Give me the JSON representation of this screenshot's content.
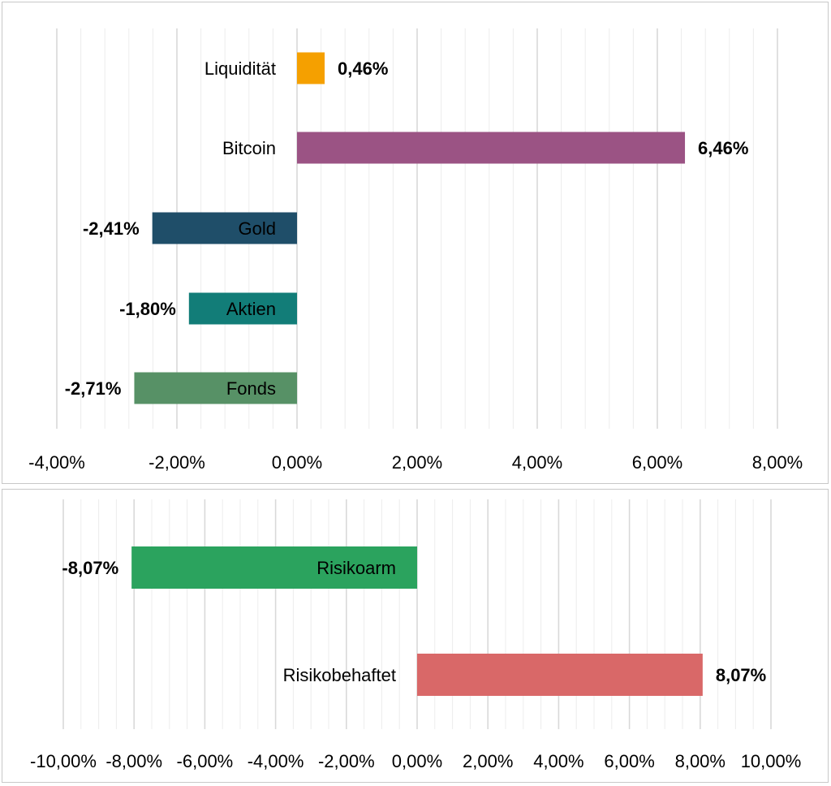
{
  "chart_data": [
    {
      "type": "bar",
      "orientation": "horizontal",
      "categories": [
        "Liquidität",
        "Bitcoin",
        "Gold",
        "Aktien",
        "Fonds"
      ],
      "values": [
        0.46,
        6.46,
        -2.41,
        -1.8,
        -2.71
      ],
      "value_labels": [
        "0,46%",
        "6,46%",
        "-2,41%",
        "-1,80%",
        "-2,71%"
      ],
      "colors": [
        "#F5A000",
        "#9B5384",
        "#1F4E69",
        "#127D78",
        "#579166"
      ],
      "xlim": [
        -4,
        8
      ],
      "xticks": [
        -4,
        -2,
        0,
        2,
        4,
        6,
        8
      ],
      "xtick_labels": [
        "-4,00%",
        "-2,00%",
        "0,00%",
        "2,00%",
        "4,00%",
        "6,00%",
        "8,00%"
      ],
      "minor_step": 0.4,
      "grid": true,
      "legend": "none",
      "title": "",
      "xlabel": "",
      "ylabel": ""
    },
    {
      "type": "bar",
      "orientation": "horizontal",
      "categories": [
        "Risikoarm",
        "Risikobehaftet"
      ],
      "values": [
        -8.07,
        8.07
      ],
      "value_labels": [
        "-8,07%",
        "8,07%"
      ],
      "colors": [
        "#2BA35E",
        "#D96868"
      ],
      "xlim": [
        -10,
        10
      ],
      "xticks": [
        -10,
        -8,
        -6,
        -4,
        -2,
        0,
        2,
        4,
        6,
        8,
        10
      ],
      "xtick_labels": [
        "-10,00%",
        "-8,00%",
        "-6,00%",
        "-4,00%",
        "-2,00%",
        "0,00%",
        "2,00%",
        "4,00%",
        "6,00%",
        "8,00%",
        "10,00%"
      ],
      "minor_step": 0.5,
      "grid": true,
      "legend": "none",
      "title": "",
      "xlabel": "",
      "ylabel": ""
    }
  ]
}
